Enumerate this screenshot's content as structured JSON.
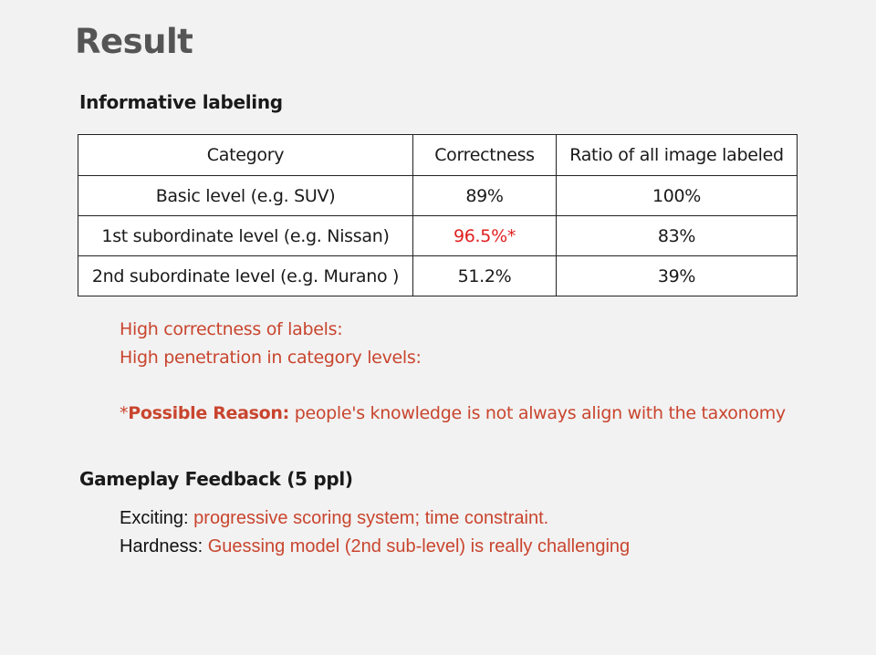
{
  "slide": {
    "title": "Result"
  },
  "informative": {
    "heading": "Informative labeling",
    "table": {
      "headers": [
        "Category",
        "Correctness",
        "Ratio of all image labeled"
      ],
      "rows": [
        {
          "category": "Basic level  (e.g. SUV)",
          "correctness": "89%",
          "ratio": "100%"
        },
        {
          "category": "1st subordinate level  (e.g. Nissan)",
          "correctness": "96.5%*",
          "ratio": "83%"
        },
        {
          "category": "2nd subordinate level (e.g. Murano )",
          "correctness": "51.2%",
          "ratio": "39%"
        }
      ]
    },
    "notes": {
      "line1": "High correctness of labels:",
      "line2": "High penetration in category levels:",
      "reason_prefix": "*",
      "reason_label": "Possible Reason:",
      "reason_text": " people's knowledge is not always align with the taxonomy"
    }
  },
  "gameplay": {
    "heading": "Gameplay Feedback (5 ppl)",
    "items": [
      {
        "label": "Exciting: ",
        "value": "progressive scoring system;  time constraint."
      },
      {
        "label": "Hardness: ",
        "value": "Guessing model (2nd sub-level) is really challenging"
      }
    ]
  },
  "colors": {
    "accent_red": "#c9452e",
    "highlight_red": "#e02020",
    "title_gray": "#555555"
  }
}
